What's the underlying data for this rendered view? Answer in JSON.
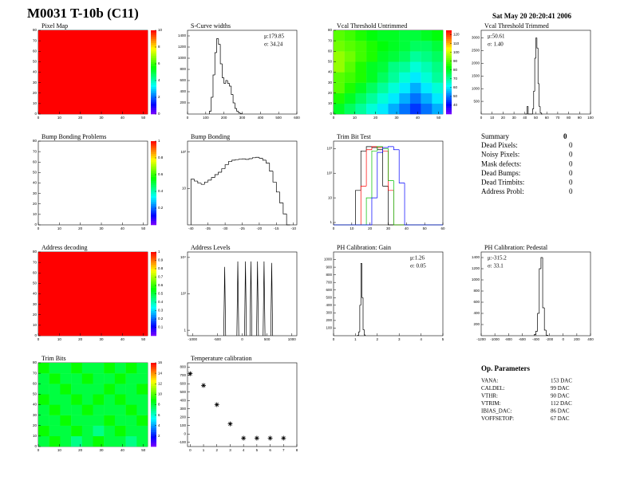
{
  "title": "M0031 T-10b (C11)",
  "date": "Sat May 20 20:20:41 2006",
  "chart_data": [
    {
      "type": "heatmap",
      "title": "Pixel Map",
      "xlim": [
        0,
        52
      ],
      "xticks": [
        0,
        10,
        20,
        30,
        40,
        50
      ],
      "ylim": [
        0,
        80
      ],
      "yticks": [
        0,
        10,
        20,
        30,
        40,
        50,
        60,
        70,
        80
      ],
      "zlim": [
        0,
        10
      ],
      "zticks": [
        0,
        2,
        4,
        6,
        8,
        10
      ],
      "z": [
        [
          10
        ]
      ]
    },
    {
      "type": "histogram",
      "title": "S-Curve widths",
      "xlim": [
        0,
        600
      ],
      "xticks": [
        0,
        100,
        200,
        300,
        400,
        500,
        600
      ],
      "ylim": [
        0,
        1500
      ],
      "yticks": [
        200,
        400,
        600,
        800,
        1000,
        1200,
        1400
      ],
      "stats_corner": "top-right",
      "stats": [
        "μ:179.85",
        "σ: 34.24"
      ],
      "bins": [
        120,
        130,
        140,
        150,
        160,
        170,
        180,
        190,
        200,
        210,
        220,
        230,
        240,
        250,
        260,
        270,
        280,
        290,
        300
      ],
      "values": [
        50,
        300,
        700,
        1100,
        1350,
        1250,
        900,
        650,
        550,
        600,
        550,
        500,
        350,
        200,
        100,
        50,
        20,
        5
      ],
      "color": "#000000"
    },
    {
      "type": "heatmap",
      "title": "Vcal Threshold Untrimmed",
      "xlim": [
        0,
        52
      ],
      "xticks": [
        0,
        10,
        20,
        30,
        40,
        50
      ],
      "ylim": [
        0,
        80
      ],
      "yticks": [
        0,
        10,
        20,
        30,
        40,
        50,
        60,
        70,
        80
      ],
      "zlim": [
        30,
        125
      ],
      "zticks": [
        40,
        50,
        60,
        70,
        80,
        90,
        100,
        110,
        120
      ],
      "z": [
        [
          80,
          75,
          70,
          65,
          60,
          55,
          50,
          45,
          50,
          55
        ],
        [
          85,
          80,
          75,
          70,
          65,
          60,
          55,
          50,
          55,
          60
        ],
        [
          90,
          85,
          80,
          75,
          70,
          65,
          60,
          55,
          60,
          65
        ],
        [
          90,
          88,
          85,
          80,
          75,
          70,
          65,
          60,
          65,
          70
        ],
        [
          95,
          90,
          85,
          80,
          78,
          72,
          70,
          65,
          68,
          72
        ],
        [
          95,
          92,
          88,
          85,
          80,
          78,
          75,
          70,
          72,
          75
        ],
        [
          92,
          90,
          88,
          85,
          82,
          80,
          78,
          75,
          75,
          78
        ],
        [
          90,
          88,
          85,
          82,
          80,
          80,
          78,
          78,
          80,
          82
        ]
      ]
    },
    {
      "type": "histogram",
      "title": "Vcal Threshold Trimmed",
      "xlim": [
        0,
        100
      ],
      "xticks": [
        0,
        10,
        20,
        30,
        40,
        50,
        60,
        70,
        80,
        90,
        100
      ],
      "ylim": [
        0,
        3300
      ],
      "yticks": [
        500,
        1000,
        1500,
        2000,
        2500,
        3000
      ],
      "stats_corner": "top-left",
      "stats": [
        "μ:50.61",
        "σ: 1.40"
      ],
      "bins": [
        40,
        41,
        42,
        43,
        44,
        45,
        46,
        47,
        48,
        49,
        50,
        51,
        52,
        53,
        54,
        55,
        56
      ],
      "values": [
        0,
        0,
        300,
        0,
        0,
        0,
        0,
        200,
        900,
        2200,
        3000,
        2600,
        1200,
        300,
        50,
        0
      ],
      "color": "#000000"
    },
    {
      "type": "heatmap",
      "title": "Bump Bonding Problems",
      "xlim": [
        0,
        52
      ],
      "xticks": [
        0,
        10,
        20,
        30,
        40,
        50
      ],
      "ylim": [
        0,
        80
      ],
      "yticks": [
        0,
        10,
        20,
        30,
        40,
        50,
        60,
        70,
        80
      ],
      "zlim": [
        0,
        1
      ],
      "zticks": [
        0.2,
        0.4,
        0.6,
        0.8,
        1
      ],
      "z": []
    },
    {
      "type": "histogram",
      "title": "Bump Bonding",
      "log_y": true,
      "xlim": [
        -41,
        -9
      ],
      "xticks": [
        -40,
        -35,
        -30,
        -25,
        -20,
        -15,
        -10
      ],
      "ylim": [
        1,
        200
      ],
      "yticks": [
        10,
        {
          "value": 100,
          "label": "10²"
        }
      ],
      "bins": [
        -40,
        -39,
        -38,
        -37,
        -36,
        -35,
        -34,
        -33,
        -32,
        -31,
        -30,
        -29,
        -28,
        -27,
        -26,
        -25,
        -24,
        -23,
        -22,
        -21,
        -20,
        -19,
        -18,
        -17,
        -16,
        -15,
        -14,
        -13,
        -12,
        -11
      ],
      "values": [
        18,
        16,
        14,
        13,
        15,
        17,
        20,
        24,
        28,
        35,
        45,
        55,
        60,
        62,
        64,
        65,
        63,
        66,
        70,
        72,
        68,
        60,
        50,
        30,
        15,
        8,
        4,
        2,
        1
      ],
      "color": "#000000"
    },
    {
      "type": "multi_histogram",
      "title": "Trim Bit Test",
      "log_y": true,
      "xlim": [
        0,
        60
      ],
      "xticks": [
        0,
        10,
        20,
        30,
        40,
        50,
        60
      ],
      "ylim": [
        0.8,
        2000
      ],
      "yticks": [
        1,
        10,
        {
          "value": 100,
          "label": "10²"
        },
        {
          "value": 1000,
          "label": "10³"
        }
      ],
      "bins": [
        0,
        3,
        6,
        9,
        12,
        15,
        18,
        21,
        24,
        27,
        30,
        33,
        36,
        39,
        42,
        45,
        48,
        51,
        54,
        57,
        60
      ],
      "series": [
        {
          "color": "#000000",
          "values": [
            0,
            0,
            0,
            0,
            20,
            800,
            1200,
            1100,
            900,
            30,
            0,
            0,
            0,
            0,
            0,
            0,
            0,
            0,
            0,
            0
          ]
        },
        {
          "color": "#ff0000",
          "values": [
            0,
            0,
            0,
            0,
            0,
            30,
            900,
            1200,
            1100,
            800,
            20,
            0,
            0,
            0,
            0,
            0,
            0,
            0,
            0,
            0
          ]
        },
        {
          "color": "#00c000",
          "values": [
            0,
            0,
            0,
            0,
            0,
            0,
            10,
            800,
            1200,
            1000,
            50,
            0,
            0,
            0,
            0,
            0,
            0,
            0,
            0,
            0
          ]
        },
        {
          "color": "#0000ff",
          "values": [
            0,
            0,
            0,
            0,
            0,
            0,
            0,
            10,
            700,
            1100,
            1200,
            900,
            40,
            0,
            0,
            0,
            0,
            0,
            0,
            0
          ]
        }
      ]
    },
    {
      "type": "heatmap",
      "title": "Address decoding",
      "xlim": [
        0,
        52
      ],
      "xticks": [
        0,
        10,
        20,
        30,
        40,
        50
      ],
      "ylim": [
        0,
        80
      ],
      "yticks": [
        0,
        10,
        20,
        30,
        40,
        50,
        60,
        70,
        80
      ],
      "zlim": [
        0,
        1
      ],
      "zticks": [
        0.1,
        0.2,
        0.3,
        0.4,
        0.5,
        0.6,
        0.7,
        0.8,
        0.9,
        1
      ],
      "z": [
        [
          1
        ]
      ]
    },
    {
      "type": "spikes",
      "title": "Address Levels",
      "log_y": true,
      "xlim": [
        -1100,
        1100
      ],
      "xticks": [
        -1000,
        -500,
        0,
        500,
        1000
      ],
      "ylim": [
        0.5,
        20000
      ],
      "yticks": [
        1,
        {
          "value": 100,
          "label": "10²"
        },
        {
          "value": 10000,
          "label": "10⁴"
        }
      ],
      "x": [
        -352,
        -88,
        66,
        176,
        308,
        440,
        594
      ],
      "values": [
        3000,
        6000,
        6000,
        6000,
        6000,
        6000,
        5000
      ],
      "color": "#000000"
    },
    {
      "type": "histogram",
      "title": "PH Calibration: Gain",
      "xlim": [
        0,
        5
      ],
      "xticks": [
        0,
        1,
        2,
        3,
        4,
        5
      ],
      "ylim": [
        0,
        1100
      ],
      "yticks": [
        100,
        200,
        300,
        400,
        500,
        600,
        700,
        800,
        900,
        1000
      ],
      "stats_corner": "top-right",
      "stats": [
        "μ:1.26",
        "σ: 0.05"
      ],
      "bins": [
        1.1,
        1.15,
        1.2,
        1.25,
        1.3,
        1.35,
        1.4,
        1.45
      ],
      "values": [
        5,
        50,
        400,
        950,
        500,
        80,
        10
      ],
      "color": "#000000"
    },
    {
      "type": "histogram",
      "title": "PH Calibration: Pedestal",
      "xlim": [
        -1200,
        400
      ],
      "xticks": [
        -1200,
        -1000,
        -800,
        -600,
        -400,
        -200,
        0,
        200,
        400
      ],
      "ylim": [
        0,
        1500
      ],
      "yticks": [
        200,
        400,
        600,
        800,
        1000,
        1200,
        1400
      ],
      "stats_corner": "top-left",
      "stats": [
        "μ:-315.2",
        "σ: 33.1"
      ],
      "bins": [
        -425,
        -400,
        -375,
        -350,
        -325,
        -300,
        -275,
        -250,
        -225
      ],
      "values": [
        20,
        80,
        400,
        1200,
        1400,
        500,
        100,
        10
      ],
      "color": "#000000"
    },
    {
      "type": "heatmap",
      "title": "Trim Bits",
      "xlim": [
        0,
        52
      ],
      "xticks": [
        0,
        10,
        20,
        30,
        40,
        50
      ],
      "ylim": [
        0,
        80
      ],
      "yticks": [
        0,
        10,
        20,
        30,
        40,
        50,
        60,
        70,
        80
      ],
      "zlim": [
        0,
        16
      ],
      "zticks": [
        2,
        4,
        6,
        8,
        10,
        12,
        14,
        16
      ],
      "z": [
        [
          8,
          9,
          8,
          7,
          8,
          9,
          8,
          8,
          7,
          8
        ],
        [
          9,
          8,
          8,
          9,
          8,
          7,
          8,
          9,
          8,
          8
        ],
        [
          8,
          8,
          9,
          8,
          8,
          8,
          9,
          8,
          8,
          9
        ],
        [
          8,
          9,
          8,
          8,
          9,
          8,
          8,
          8,
          9,
          8
        ],
        [
          9,
          8,
          8,
          9,
          8,
          9,
          8,
          9,
          8,
          8
        ],
        [
          8,
          8,
          9,
          8,
          8,
          8,
          9,
          8,
          8,
          9
        ],
        [
          8,
          9,
          8,
          8,
          9,
          8,
          8,
          9,
          8,
          8
        ],
        [
          9,
          8,
          8,
          9,
          8,
          8,
          9,
          8,
          9,
          8
        ]
      ]
    },
    {
      "type": "scatter",
      "title": "Temperature calibration",
      "xlim": [
        -0.2,
        8
      ],
      "xticks": [
        0,
        1,
        2,
        3,
        4,
        5,
        6,
        7,
        8
      ],
      "ylim": [
        -150,
        850
      ],
      "yticks": [
        -100,
        0,
        100,
        200,
        300,
        400,
        500,
        600,
        700,
        800
      ],
      "x": [
        0,
        1,
        2,
        3,
        4,
        5,
        6,
        7
      ],
      "values": [
        720,
        580,
        350,
        120,
        -50,
        -50,
        -50,
        -50
      ],
      "color": "#000000"
    }
  ],
  "summary": {
    "title": "Summary",
    "total": 0,
    "rows": [
      {
        "label": "Dead Pixels:",
        "value": 0
      },
      {
        "label": "Noisy Pixels:",
        "value": 0
      },
      {
        "label": "Mask defects:",
        "value": 0
      },
      {
        "label": "Dead Bumps:",
        "value": 0
      },
      {
        "label": "Dead Trimbits:",
        "value": 0
      },
      {
        "label": "Address Probl:",
        "value": 0
      }
    ]
  },
  "op_parameters": {
    "title": "Op. Parameters",
    "rows": [
      {
        "name": "VANA:",
        "value": "153 DAC"
      },
      {
        "name": "CALDEL:",
        "value": "99 DAC"
      },
      {
        "name": "VTHR:",
        "value": "90 DAC"
      },
      {
        "name": "VTRIM:",
        "value": "112 DAC"
      },
      {
        "name": "IBIAS_DAC:",
        "value": "86 DAC"
      },
      {
        "name": "VOFFSETOP:",
        "value": "67 DAC"
      }
    ]
  }
}
